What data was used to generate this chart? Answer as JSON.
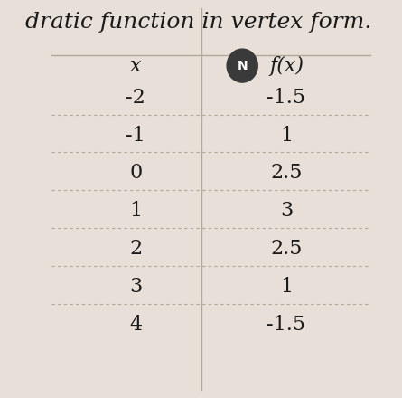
{
  "title": "dratic function in vertex form.",
  "col1_header": "x",
  "col2_header": "f(x)",
  "x_values": [
    "-2",
    "-1",
    "0",
    "1",
    "2",
    "3",
    "4"
  ],
  "fx_values": [
    "-1.5",
    "1",
    "2.5",
    "3",
    "2.5",
    "1",
    "-1.5"
  ],
  "bg_color": "#e8e0d8",
  "text_color": "#1a1a1a",
  "line_color": "#b0a898",
  "title_fontsize": 18,
  "header_fontsize": 16,
  "cell_fontsize": 16,
  "fig_width": 4.45,
  "fig_height": 4.4
}
